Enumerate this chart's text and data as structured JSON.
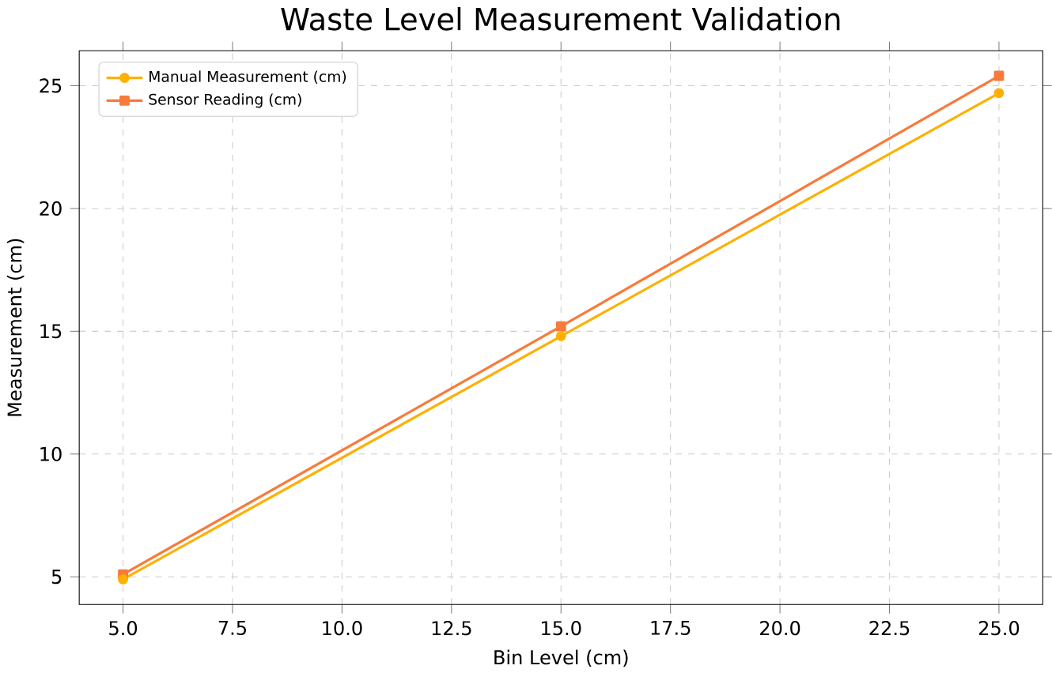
{
  "chart_data": {
    "type": "line",
    "title": "Waste Level Measurement Validation",
    "xlabel": "Bin Level (cm)",
    "ylabel": "Measurement (cm)",
    "x": [
      5,
      15,
      25
    ],
    "series": [
      {
        "name": "Manual Measurement (cm)",
        "color": "#ffb000",
        "values": [
          4.9,
          14.8,
          24.7
        ],
        "marker": "circle"
      },
      {
        "name": "Sensor Reading (cm)",
        "color": "#f77b3a",
        "values": [
          5.1,
          15.2,
          25.4
        ],
        "marker": "square"
      }
    ],
    "xlim": [
      4,
      26
    ],
    "ylim": [
      3.875,
      26.425
    ],
    "xticks": [
      {
        "value": 5,
        "label": "5.0"
      },
      {
        "value": 7.5,
        "label": "7.5"
      },
      {
        "value": 10,
        "label": "10.0"
      },
      {
        "value": 12.5,
        "label": "12.5"
      },
      {
        "value": 15,
        "label": "15.0"
      },
      {
        "value": 17.5,
        "label": "17.5"
      },
      {
        "value": 20,
        "label": "20.0"
      },
      {
        "value": 22.5,
        "label": "22.5"
      },
      {
        "value": 25,
        "label": "25.0"
      }
    ],
    "yticks": [
      5,
      10,
      15,
      20,
      25
    ],
    "grid": true,
    "legend": "top left",
    "line_style": "solid"
  }
}
